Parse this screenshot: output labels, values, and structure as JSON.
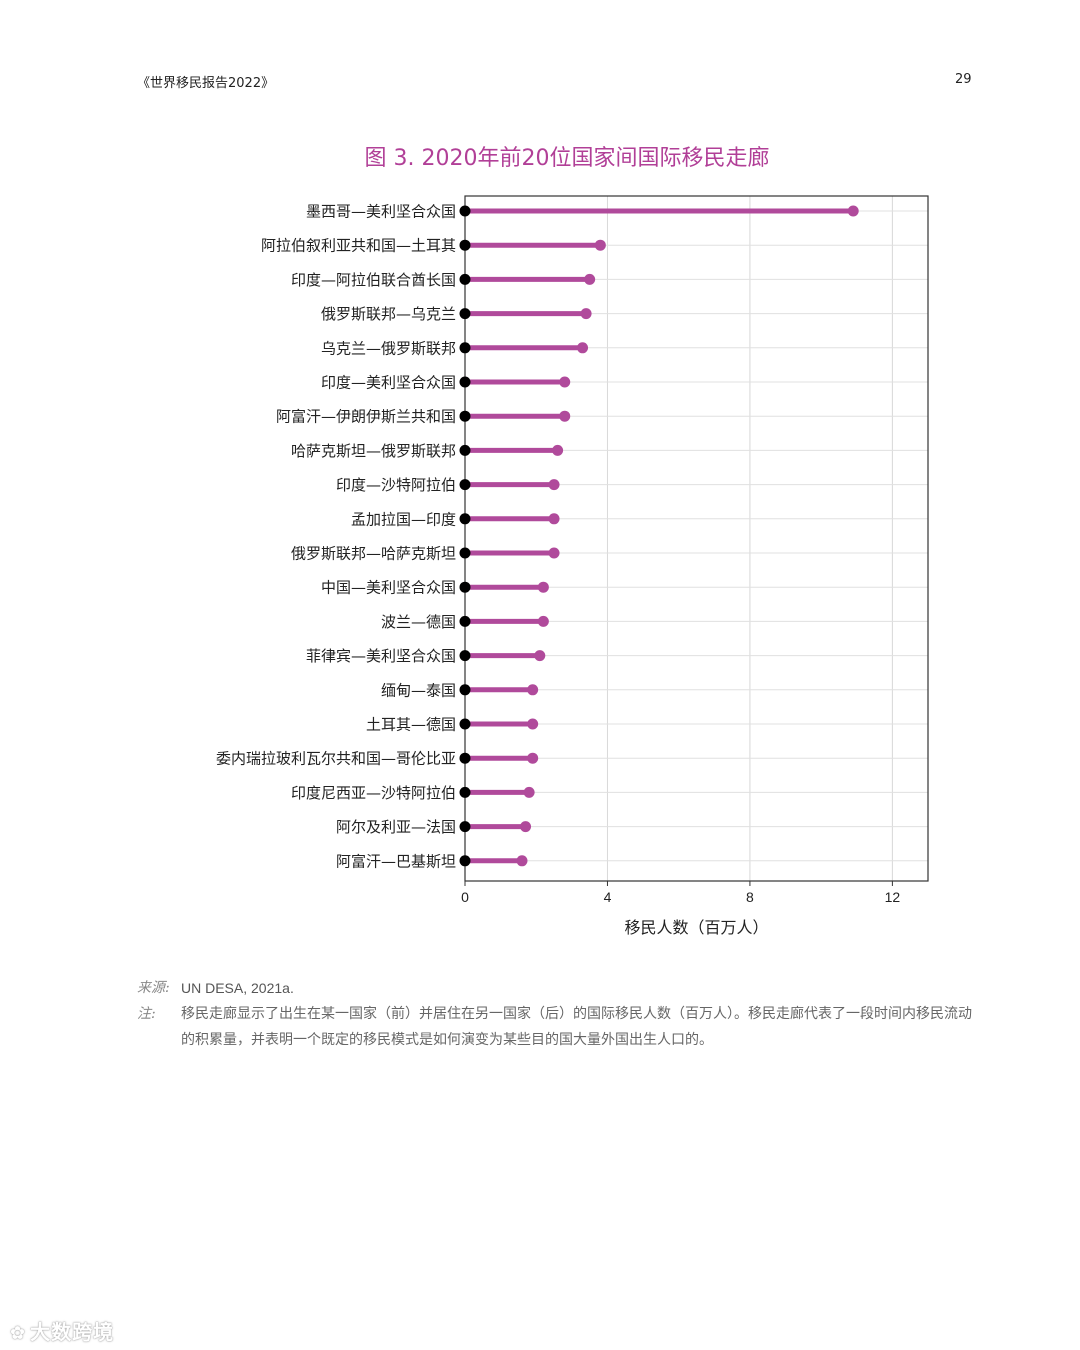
{
  "page": {
    "header_title": "《世界移民报告2022》",
    "page_number": "29"
  },
  "chart_data": {
    "type": "lollipop",
    "title": "图 3. 2020年前20位国家间国际移民走廊",
    "xlabel": "移民人数（百万人）",
    "ylabel": "",
    "xlim": [
      0,
      13
    ],
    "xticks": [
      0,
      4,
      8,
      12
    ],
    "grid": true,
    "colors": {
      "stem": "#b04a9b",
      "end_dot": "#b04a9b",
      "start_dot": "#000000"
    },
    "categories": [
      "墨西哥—美利坚合众国",
      "阿拉伯叙利亚共和国—土耳其",
      "印度—阿拉伯联合酋长国",
      "俄罗斯联邦—乌克兰",
      "乌克兰—俄罗斯联邦",
      "印度—美利坚合众国",
      "阿富汗—伊朗伊斯兰共和国",
      "哈萨克斯坦—俄罗斯联邦",
      "印度—沙特阿拉伯",
      "孟加拉国—印度",
      "俄罗斯联邦—哈萨克斯坦",
      "中国—美利坚合众国",
      "波兰—德国",
      "菲律宾—美利坚合众国",
      "缅甸—泰国",
      "土耳其—德国",
      "委内瑞拉玻利瓦尔共和国—哥伦比亚",
      "印度尼西亚—沙特阿拉伯",
      "阿尔及利亚—法国",
      "阿富汗—巴基斯坦"
    ],
    "values": [
      10.9,
      3.8,
      3.5,
      3.4,
      3.3,
      2.8,
      2.8,
      2.6,
      2.5,
      2.5,
      2.5,
      2.2,
      2.2,
      2.1,
      1.9,
      1.9,
      1.9,
      1.8,
      1.7,
      1.6
    ]
  },
  "notes": {
    "source_label": "来源:",
    "source_text": "UN DESA, 2021a.",
    "note_label": "注:",
    "note_text": "移民走廊显示了出生在某一国家（前）并居住在另一国家（后）的国际移民人数（百万人）。移民走廊代表了一段时间内移民流动的积累量，并表明一个既定的移民模式是如何演变为某些目的国大量外国出生人口的。"
  },
  "watermark": {
    "icon": "wechat-logo-icon",
    "text": "大数跨境"
  }
}
